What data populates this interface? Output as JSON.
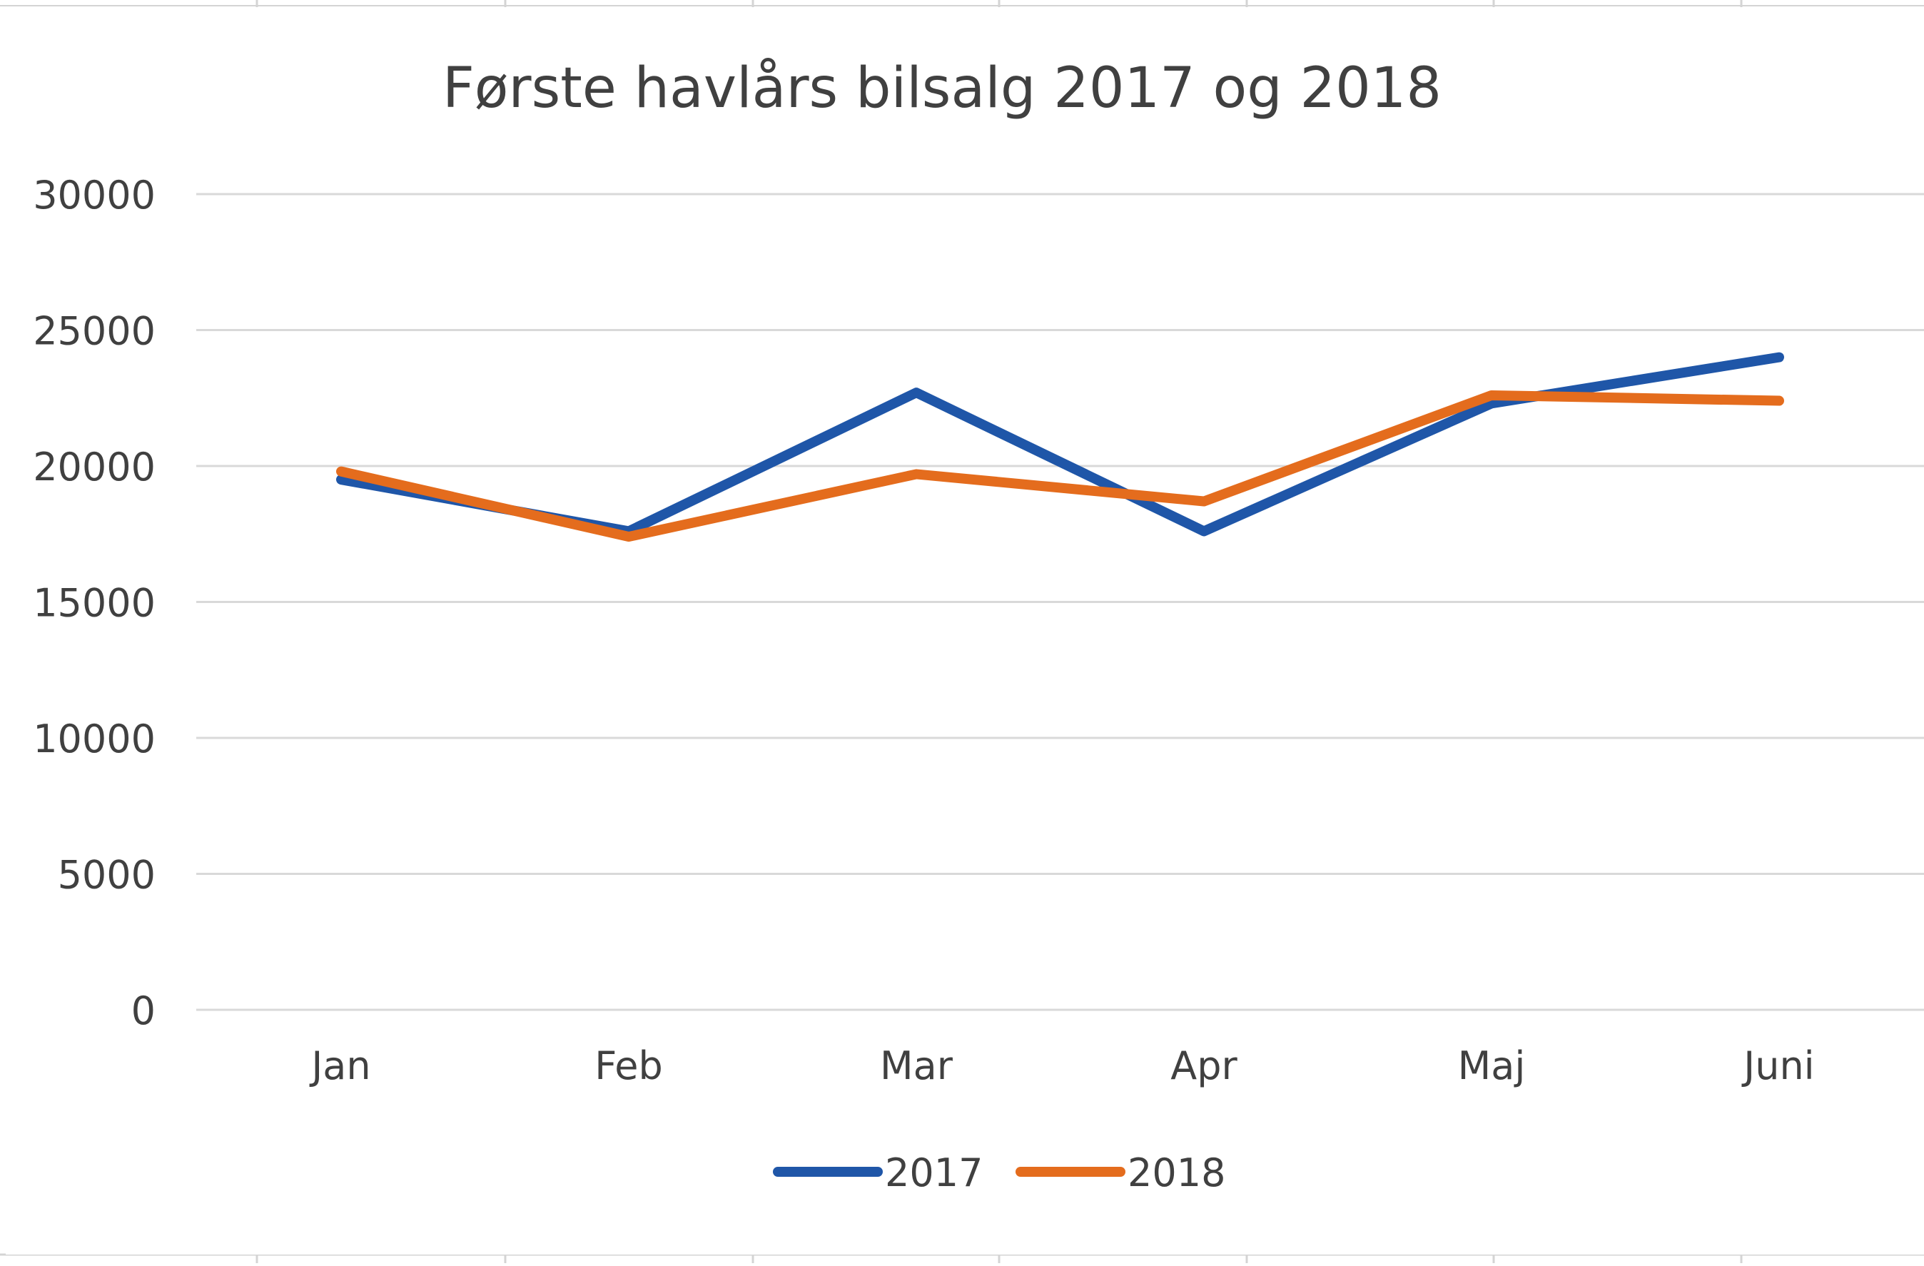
{
  "chart_data": {
    "type": "line",
    "title": "Første havlårs bilsalg 2017 og 2018",
    "xlabel": "",
    "ylabel": "",
    "categories": [
      "Jan",
      "Feb",
      "Mar",
      "Apr",
      "Maj",
      "Juni"
    ],
    "ylim": [
      0,
      30000
    ],
    "yticks": [
      0,
      5000,
      10000,
      15000,
      20000,
      25000,
      30000
    ],
    "ytick_labels": [
      "0",
      "5000",
      "10000",
      "15000",
      "20000",
      "25000",
      "30000"
    ],
    "grid": true,
    "legend_position": "bottom",
    "series": [
      {
        "name": "2017",
        "color": "#1f56a8",
        "values": [
          19500,
          17600,
          22700,
          17600,
          22300,
          24000
        ]
      },
      {
        "name": "2018",
        "color": "#e46c1d",
        "values": [
          19800,
          17400,
          19700,
          18700,
          22600,
          22400
        ]
      }
    ]
  },
  "colors": {
    "background": "#ffffff",
    "gridline": "#d9d9d9",
    "text": "#404040",
    "sheet_grid": "#d4d4d4"
  }
}
